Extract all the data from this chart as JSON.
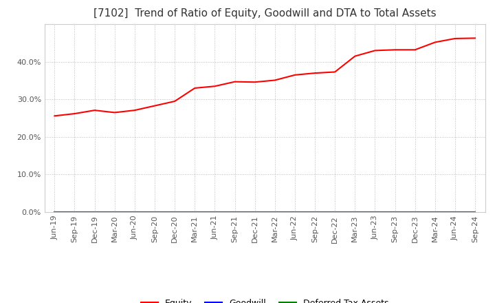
{
  "title": "[7102]  Trend of Ratio of Equity, Goodwill and DTA to Total Assets",
  "equity_dates": [
    "Jun-19",
    "Sep-19",
    "Dec-19",
    "Mar-20",
    "Jun-20",
    "Sep-20",
    "Dec-20",
    "Mar-21",
    "Jun-21",
    "Sep-21",
    "Dec-21",
    "Mar-22",
    "Jun-22",
    "Sep-22",
    "Dec-22",
    "Mar-23",
    "Jun-23",
    "Sep-23",
    "Dec-23",
    "Mar-24",
    "Jun-24",
    "Sep-24"
  ],
  "equity_values": [
    0.256,
    0.262,
    0.271,
    0.265,
    0.271,
    0.283,
    0.295,
    0.33,
    0.335,
    0.347,
    0.346,
    0.351,
    0.365,
    0.37,
    0.373,
    0.415,
    0.43,
    0.432,
    0.432,
    0.452,
    0.462,
    0.463
  ],
  "goodwill_values": [
    0.0,
    0.0,
    0.0,
    0.0,
    0.0,
    0.0,
    0.0,
    0.0,
    0.0,
    0.0,
    0.0,
    0.0,
    0.0,
    0.0,
    0.0,
    0.0,
    0.0,
    0.0,
    0.0,
    0.0,
    0.0,
    0.0
  ],
  "dta_values": [
    0.0,
    0.0,
    0.0,
    0.0,
    0.0,
    0.0,
    0.0,
    0.0,
    0.0,
    0.0,
    0.0,
    0.0,
    0.0,
    0.0,
    0.0,
    0.0,
    0.0,
    0.0,
    0.0,
    0.0,
    0.0,
    0.0
  ],
  "equity_color": "#FF0000",
  "goodwill_color": "#0000FF",
  "dta_color": "#008000",
  "background_color": "#FFFFFF",
  "plot_bg_color": "#FFFFFF",
  "grid_color": "#BBBBBB",
  "ylim": [
    0.0,
    0.5
  ],
  "yticks": [
    0.0,
    0.1,
    0.2,
    0.3,
    0.4
  ],
  "legend_labels": [
    "Equity",
    "Goodwill",
    "Deferred Tax Assets"
  ],
  "title_fontsize": 11,
  "tick_fontsize": 8,
  "legend_fontsize": 9,
  "line_width": 1.5
}
